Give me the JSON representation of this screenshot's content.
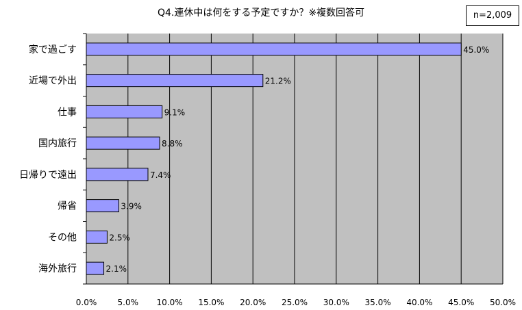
{
  "title": "Q4.連休中は何をする予定ですか？※複数回答可",
  "sample_note": "n=2,009",
  "colors": {
    "plot_background": "#c0c0c0",
    "bar_fill": "#9999ff",
    "bar_stroke": "#000000",
    "gridline": "#000000"
  },
  "chart_data": {
    "type": "bar",
    "orientation": "horizontal",
    "title": "Q4.連休中は何をする予定ですか？※複数回答可",
    "xlabel": "",
    "ylabel": "",
    "categories": [
      "家で過ごす",
      "近場で外出",
      "仕事",
      "国内旅行",
      "日帰りで遠出",
      "帰省",
      "その他",
      "海外旅行"
    ],
    "values": [
      45.0,
      21.2,
      9.1,
      8.8,
      7.4,
      3.9,
      2.5,
      2.1
    ],
    "value_labels": [
      "45.0%",
      "21.2%",
      "9.1%",
      "8.8%",
      "7.4%",
      "3.9%",
      "2.5%",
      "2.1%"
    ],
    "xlim": [
      0,
      50
    ],
    "x_ticks": [
      0,
      5,
      10,
      15,
      20,
      25,
      30,
      35,
      40,
      45,
      50
    ],
    "x_tick_labels": [
      "0.0%",
      "5.0%",
      "10.0%",
      "15.0%",
      "20.0%",
      "25.0%",
      "30.0%",
      "35.0%",
      "40.0%",
      "45.0%",
      "50.0%"
    ],
    "grid": true,
    "legend": "none"
  }
}
